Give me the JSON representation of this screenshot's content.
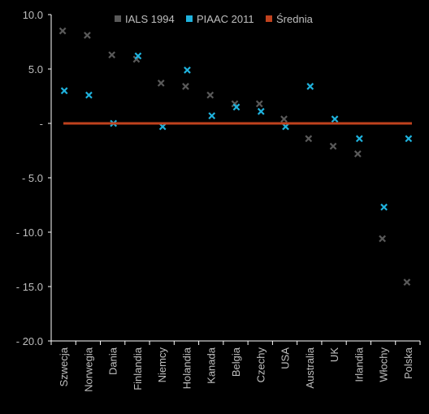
{
  "chart_data": {
    "type": "scatter",
    "categories": [
      "Szwecja",
      "Norwegia",
      "Dania",
      "Finlandia",
      "Niemcy",
      "Holandia",
      "Kanada",
      "Belgia",
      "Czechy",
      "USA",
      "Australia",
      "UK",
      "Irlandia",
      "Włochy",
      "Polska"
    ],
    "series": [
      {
        "name": "IALS 1994",
        "marker": "x",
        "color": "#595959",
        "values": [
          8.5,
          8.1,
          6.3,
          5.9,
          3.7,
          3.4,
          2.6,
          1.8,
          1.8,
          0.4,
          -1.4,
          -2.1,
          -2.8,
          -10.6,
          -14.6
        ]
      },
      {
        "name": "PIAAC 2011",
        "marker": "x",
        "color": "#1fb2dd",
        "values": [
          3.0,
          2.6,
          0.0,
          6.2,
          -0.3,
          4.9,
          0.7,
          1.5,
          1.1,
          -0.3,
          3.4,
          0.4,
          -1.4,
          -7.7,
          -1.4
        ]
      },
      {
        "name": "Średnia",
        "marker": "line",
        "color": "#c0421e",
        "values": [
          0,
          0,
          0,
          0,
          0,
          0,
          0,
          0,
          0,
          0,
          0,
          0,
          0,
          0,
          0
        ]
      }
    ],
    "yticks": [
      10,
      5,
      0,
      -5,
      -10,
      -15,
      -20
    ],
    "ytick_labels": [
      "10.0",
      "5.0",
      "-",
      "- 5.0",
      "- 10.0",
      "- 15.0",
      "- 20.0"
    ],
    "ylim": [
      -20,
      10
    ],
    "legend_position": "top",
    "colors": {
      "background": "#000000",
      "axis": "#ffffff",
      "text": "#bfbfbf"
    }
  }
}
